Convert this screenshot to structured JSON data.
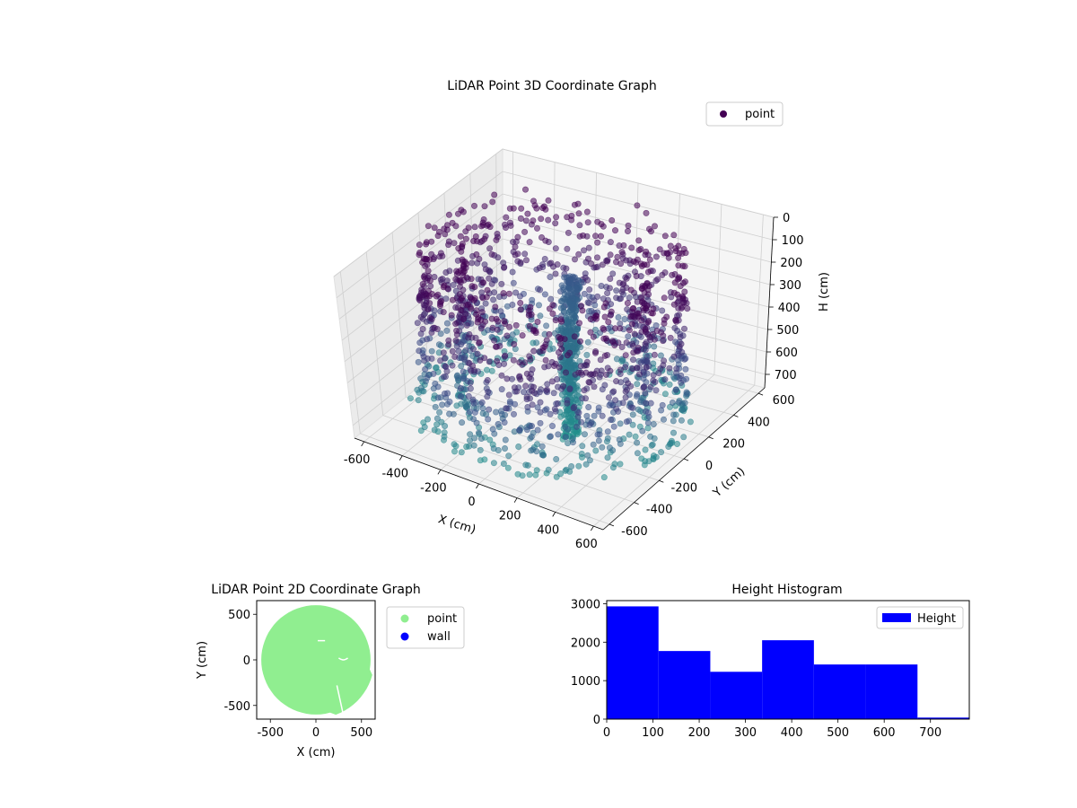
{
  "chart_data": [
    {
      "type": "scatter",
      "projection": "3d",
      "title": "LiDAR Point 3D Coordinate Graph",
      "xlabel": "X (cm)",
      "ylabel": "Y (cm)",
      "zlabel": "H (cm)",
      "xticks": [
        -600,
        -400,
        -200,
        0,
        200,
        400,
        600
      ],
      "yticks": [
        -600,
        -400,
        -200,
        0,
        200,
        400,
        600
      ],
      "zticks": [
        0,
        100,
        200,
        300,
        400,
        500,
        600,
        700
      ],
      "xlim": [
        -650,
        650
      ],
      "ylim": [
        -650,
        650
      ],
      "zlim": [
        760,
        0
      ],
      "zaxis_inverted": true,
      "grid": true,
      "colormap": "viridis",
      "legend": {
        "position": "top-right",
        "entries": [
          {
            "label": "point",
            "color": "#440154"
          }
        ]
      },
      "shape": "hollow ring of points, outer radius ~600 cm, inner radius ~420 cm, heights 0–700 cm, with a dense vertical column near x≈150, y≈-100"
    },
    {
      "type": "scatter",
      "title": "LiDAR Point 2D Coordinate Graph",
      "xlabel": "X (cm)",
      "ylabel": "Y (cm)",
      "xticks": [
        -500,
        0,
        500
      ],
      "yticks": [
        -500,
        0,
        500
      ],
      "xlim": [
        -650,
        650
      ],
      "ylim": [
        -650,
        650
      ],
      "legend": {
        "position": "outside-right",
        "entries": [
          {
            "label": "point",
            "color": "#90ee90"
          },
          {
            "label": "wall",
            "color": "#0000ff"
          }
        ]
      },
      "shape": "filled disc of points with radius ~600 cm"
    },
    {
      "type": "bar",
      "subtype": "histogram",
      "title": "Height Histogram",
      "xlabel": "",
      "ylabel": "",
      "bin_edges": [
        0,
        112,
        224,
        336,
        448,
        560,
        672,
        784
      ],
      "values": [
        2930,
        1770,
        1230,
        2050,
        1420,
        1420,
        40
      ],
      "xticks": [
        0,
        100,
        200,
        300,
        400,
        500,
        600,
        700
      ],
      "yticks": [
        0,
        1000,
        2000,
        3000
      ],
      "xlim": [
        0,
        784
      ],
      "ylim": [
        0,
        3080
      ],
      "color": "#0000ff",
      "legend": {
        "position": "top-right",
        "entries": [
          {
            "label": "Height",
            "color": "#0000ff"
          }
        ]
      }
    }
  ]
}
